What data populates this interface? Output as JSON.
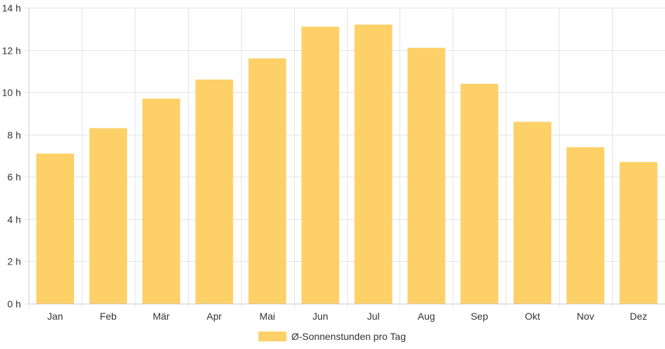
{
  "chart_data": {
    "type": "bar",
    "categories": [
      "Jan",
      "Feb",
      "Mär",
      "Apr",
      "Mai",
      "Jun",
      "Jul",
      "Aug",
      "Sep",
      "Okt",
      "Nov",
      "Dez"
    ],
    "series": [
      {
        "name": "Ø-Sonnenstunden pro Tag",
        "values": [
          7.1,
          8.3,
          9.7,
          10.6,
          11.6,
          13.1,
          13.2,
          12.1,
          10.4,
          8.6,
          7.4,
          6.7
        ],
        "color": "#fdd068"
      }
    ],
    "ylim": [
      0,
      14
    ],
    "yticks": [
      0,
      2,
      4,
      6,
      8,
      10,
      12,
      14
    ],
    "ytick_labels": [
      "0 h",
      "2 h",
      "4 h",
      "6 h",
      "8 h",
      "10 h",
      "12 h",
      "14 h"
    ],
    "title": "",
    "xlabel": "",
    "ylabel": "",
    "grid": true,
    "legend_position": "bottom"
  },
  "colors": {
    "bar": "#fdd068",
    "grid": "#e5e5e5",
    "axis": "#cccccc",
    "text": "#333333"
  }
}
